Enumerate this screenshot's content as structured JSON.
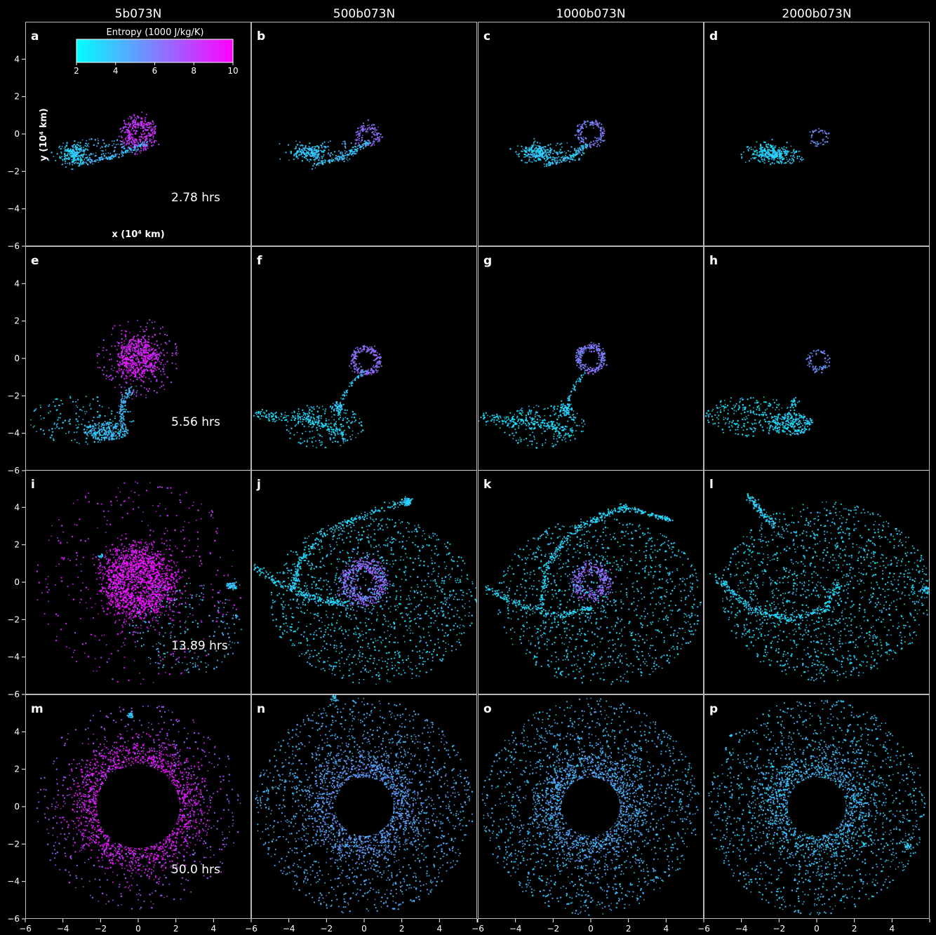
{
  "figure": {
    "columns": [
      "5b073N",
      "500b073N",
      "1000b073N",
      "2000b073N"
    ],
    "times": [
      "2.78 hrs",
      "5.56 hrs",
      "13.89 hrs",
      "50.0 hrs"
    ],
    "panel_letters": [
      "a",
      "b",
      "c",
      "d",
      "e",
      "f",
      "g",
      "h",
      "i",
      "j",
      "k",
      "l",
      "m",
      "n",
      "o",
      "p"
    ]
  },
  "colorbar": {
    "title": "Entropy (1000 J/kg/K)",
    "ticks": [
      "2",
      "4",
      "6",
      "8",
      "10"
    ],
    "range": [
      2,
      10
    ],
    "colors": [
      "#00ffff",
      "#ff00ff"
    ]
  },
  "chart_data": {
    "type": "scatter",
    "xlabel": "x (10⁴ km)",
    "ylabel": "y (10⁴ km)",
    "xlim": [
      -6,
      6
    ],
    "ylim": [
      -6,
      6
    ],
    "xticks": [
      "−6",
      "−4",
      "−2",
      "0",
      "2",
      "4",
      ""
    ],
    "yticks": [
      "−6",
      "−4",
      "−2",
      "0",
      "2",
      "4"
    ],
    "background": "#000000",
    "panels": [
      {
        "letter": "a",
        "time": "2.78 hrs",
        "structures": [
          {
            "kind": "ring",
            "x": 0.0,
            "y": 0.0,
            "r": 0.65,
            "w": 0.4,
            "n": 260,
            "s": 8.2
          },
          {
            "kind": "cloud",
            "x": 0.0,
            "y": 0.2,
            "rx": 1.0,
            "ry": 0.9,
            "n": 120,
            "s": 8.5
          },
          {
            "kind": "blob",
            "x": -3.4,
            "y": -1.1,
            "rx": 0.8,
            "ry": 0.55,
            "n": 260,
            "s": 3.4
          },
          {
            "kind": "line",
            "pts": [
              [
                -3.2,
                -1.6
              ],
              [
                -1.3,
                -1.2
              ],
              [
                0.5,
                -0.5
              ]
            ],
            "w": 0.15,
            "n": 130,
            "s": 3.9
          },
          {
            "kind": "cloud",
            "x": -2.0,
            "y": -0.8,
            "rx": 1.6,
            "ry": 0.6,
            "n": 90,
            "s": 4.4
          }
        ]
      },
      {
        "letter": "b",
        "time": "",
        "structures": [
          {
            "kind": "ring",
            "x": 0.2,
            "y": -0.1,
            "r": 0.5,
            "w": 0.25,
            "n": 130,
            "s": 6.4
          },
          {
            "kind": "blob",
            "x": -2.8,
            "y": -1.0,
            "rx": 1.0,
            "ry": 0.45,
            "n": 220,
            "s": 3.6
          },
          {
            "kind": "line",
            "pts": [
              [
                -2.7,
                -1.7
              ],
              [
                -1.0,
                -1.2
              ],
              [
                0.2,
                -0.4
              ]
            ],
            "w": 0.15,
            "n": 130,
            "s": 3.8
          },
          {
            "kind": "cloud",
            "x": -1.5,
            "y": -0.9,
            "rx": 1.4,
            "ry": 0.6,
            "n": 70,
            "s": 4.2
          }
        ]
      },
      {
        "letter": "c",
        "time": "",
        "structures": [
          {
            "kind": "ring",
            "x": 0.0,
            "y": 0.0,
            "r": 0.6,
            "w": 0.2,
            "n": 160,
            "s": 5.9
          },
          {
            "kind": "blob",
            "x": -2.8,
            "y": -1.0,
            "rx": 1.0,
            "ry": 0.45,
            "n": 230,
            "s": 3.4
          },
          {
            "kind": "line",
            "pts": [
              [
                -2.4,
                -1.7
              ],
              [
                -1.0,
                -1.2
              ],
              [
                -0.2,
                -0.6
              ]
            ],
            "w": 0.15,
            "n": 120,
            "s": 3.6
          },
          {
            "kind": "cloud",
            "x": -1.6,
            "y": -1.0,
            "rx": 1.3,
            "ry": 0.6,
            "n": 70,
            "s": 4.0
          }
        ]
      },
      {
        "letter": "d",
        "time": "",
        "structures": [
          {
            "kind": "ring",
            "x": 0.1,
            "y": -0.2,
            "r": 0.4,
            "w": 0.15,
            "n": 50,
            "s": 5.5
          },
          {
            "kind": "blob",
            "x": -2.6,
            "y": -1.0,
            "rx": 1.0,
            "ry": 0.5,
            "n": 260,
            "s": 3.2
          },
          {
            "kind": "cloud",
            "x": -1.6,
            "y": -1.2,
            "rx": 1.0,
            "ry": 0.4,
            "n": 90,
            "s": 3.5
          }
        ]
      },
      {
        "letter": "e",
        "time": "5.56 hrs",
        "structures": [
          {
            "kind": "ring",
            "x": 0.0,
            "y": 0.0,
            "r": 0.75,
            "w": 0.55,
            "n": 600,
            "s": 9.0
          },
          {
            "kind": "cloud",
            "x": 0.0,
            "y": 0.0,
            "rx": 2.2,
            "ry": 2.2,
            "n": 200,
            "s": 8.0
          },
          {
            "kind": "cloud",
            "x": -1.7,
            "y": -3.9,
            "rx": 1.2,
            "ry": 0.5,
            "n": 260,
            "s": 3.8
          },
          {
            "kind": "line",
            "pts": [
              [
                -0.8,
                -3.6
              ],
              [
                -0.9,
                -2.5
              ],
              [
                -0.3,
                -1.5
              ]
            ],
            "w": 0.2,
            "n": 120,
            "s": 4.2
          },
          {
            "kind": "cloud",
            "x": -3.0,
            "y": -3.3,
            "rx": 2.8,
            "ry": 1.3,
            "n": 160,
            "s": 3.4
          }
        ]
      },
      {
        "letter": "f",
        "time": "",
        "structures": [
          {
            "kind": "ring",
            "x": 0.1,
            "y": -0.1,
            "r": 0.65,
            "w": 0.2,
            "n": 240,
            "s": 6.4
          },
          {
            "kind": "line",
            "pts": [
              [
                -5.8,
                -3.0
              ],
              [
                -3.0,
                -3.2
              ],
              [
                -1.0,
                -4.0
              ]
            ],
            "w": 0.3,
            "n": 220,
            "s": 3.0
          },
          {
            "kind": "blob",
            "x": -1.4,
            "y": -2.6,
            "rx": 0.3,
            "ry": 0.35,
            "n": 60,
            "s": 3.5
          },
          {
            "kind": "line",
            "pts": [
              [
                -1.2,
                -2.2
              ],
              [
                -0.6,
                -1.2
              ],
              [
                0.0,
                -0.7
              ]
            ],
            "w": 0.1,
            "n": 45,
            "s": 3.5
          },
          {
            "kind": "cloud",
            "x": -2.2,
            "y": -3.6,
            "rx": 2.2,
            "ry": 1.2,
            "n": 200,
            "s": 3.2
          }
        ]
      },
      {
        "letter": "g",
        "time": "",
        "structures": [
          {
            "kind": "ring",
            "x": 0.0,
            "y": 0.0,
            "r": 0.65,
            "w": 0.2,
            "n": 260,
            "s": 6.0
          },
          {
            "kind": "line",
            "pts": [
              [
                -5.8,
                -3.2
              ],
              [
                -3.0,
                -3.4
              ],
              [
                -1.0,
                -4.0
              ]
            ],
            "w": 0.3,
            "n": 200,
            "s": 3.0
          },
          {
            "kind": "blob",
            "x": -1.3,
            "y": -2.7,
            "rx": 0.35,
            "ry": 0.4,
            "n": 80,
            "s": 3.4
          },
          {
            "kind": "line",
            "pts": [
              [
                -1.2,
                -2.2
              ],
              [
                -0.8,
                -1.4
              ],
              [
                -0.3,
                -0.7
              ]
            ],
            "w": 0.1,
            "n": 40,
            "s": 3.4
          },
          {
            "kind": "cloud",
            "x": -2.5,
            "y": -3.6,
            "rx": 2.2,
            "ry": 1.2,
            "n": 200,
            "s": 3.2
          }
        ]
      },
      {
        "letter": "h",
        "time": "",
        "structures": [
          {
            "kind": "ring",
            "x": 0.1,
            "y": -0.1,
            "r": 0.5,
            "w": 0.15,
            "n": 80,
            "s": 5.5
          },
          {
            "kind": "cloud",
            "x": -1.4,
            "y": -3.5,
            "rx": 1.2,
            "ry": 0.6,
            "n": 250,
            "s": 3.2
          },
          {
            "kind": "cloud",
            "x": -3.5,
            "y": -3.1,
            "rx": 2.4,
            "ry": 1.1,
            "n": 250,
            "s": 3.0
          },
          {
            "kind": "blob",
            "x": -1.2,
            "y": -2.4,
            "rx": 0.2,
            "ry": 0.25,
            "n": 30,
            "s": 3.2
          }
        ]
      },
      {
        "letter": "i",
        "time": "13.89 hrs",
        "structures": [
          {
            "kind": "ring",
            "x": 0.0,
            "y": 0.0,
            "r": 1.3,
            "w": 1.0,
            "n": 1700,
            "s": 9.4
          },
          {
            "kind": "cloud",
            "x": 0.0,
            "y": 0.0,
            "rx": 5.5,
            "ry": 5.5,
            "n": 420,
            "s": 8.6
          },
          {
            "kind": "cloud",
            "x": 2.5,
            "y": -2.5,
            "rx": 3.0,
            "ry": 2.5,
            "n": 200,
            "s": 4.0
          },
          {
            "kind": "blob",
            "x": 5.0,
            "y": -0.2,
            "rx": 0.3,
            "ry": 0.2,
            "n": 60,
            "s": 3.6
          },
          {
            "kind": "blob",
            "x": -2.0,
            "y": 1.4,
            "rx": 0.12,
            "ry": 0.1,
            "n": 15,
            "s": 3.8
          },
          {
            "kind": "blob",
            "x": 5.2,
            "y": -1.8,
            "rx": 0.08,
            "ry": 0.08,
            "n": 8,
            "s": 3.8
          }
        ]
      },
      {
        "letter": "j",
        "time": "",
        "structures": [
          {
            "kind": "ring",
            "x": 0.0,
            "y": 0.0,
            "r": 0.95,
            "w": 0.5,
            "n": 600,
            "s": 6.6
          },
          {
            "kind": "line",
            "pts": [
              [
                -5.8,
                0.8
              ],
              [
                -3.8,
                -0.5
              ],
              [
                -2.0,
                -1.0
              ],
              [
                -1.0,
                -1.2
              ]
            ],
            "w": 0.2,
            "n": 220,
            "s": 3.2
          },
          {
            "kind": "line",
            "pts": [
              [
                -3.8,
                -0.4
              ],
              [
                -3.5,
                1.0
              ],
              [
                -2.2,
                2.5
              ],
              [
                0.0,
                3.6
              ],
              [
                2.4,
                4.4
              ]
            ],
            "w": 0.2,
            "n": 280,
            "s": 3.2
          },
          {
            "kind": "blob",
            "x": 2.3,
            "y": 4.3,
            "rx": 0.28,
            "ry": 0.22,
            "n": 60,
            "s": 3.4
          },
          {
            "kind": "cloud",
            "x": 0.5,
            "y": -1.0,
            "rx": 5.5,
            "ry": 4.5,
            "n": 1300,
            "s": 3.3
          }
        ]
      },
      {
        "letter": "k",
        "time": "",
        "structures": [
          {
            "kind": "ring",
            "x": 0.0,
            "y": 0.0,
            "r": 0.8,
            "w": 0.4,
            "n": 380,
            "s": 6.6
          },
          {
            "kind": "line",
            "pts": [
              [
                -5.6,
                -0.3
              ],
              [
                -3.8,
                -1.2
              ],
              [
                -1.8,
                -1.8
              ],
              [
                0.0,
                -1.4
              ]
            ],
            "w": 0.2,
            "n": 220,
            "s": 3.2
          },
          {
            "kind": "line",
            "pts": [
              [
                -2.6,
                -1.5
              ],
              [
                -2.4,
                0.8
              ],
              [
                -1.2,
                2.5
              ],
              [
                0.5,
                3.5
              ],
              [
                1.8,
                4.0
              ]
            ],
            "w": 0.2,
            "n": 280,
            "s": 3.2
          },
          {
            "kind": "line",
            "pts": [
              [
                1.8,
                4.0
              ],
              [
                3.2,
                3.6
              ],
              [
                4.3,
                3.3
              ]
            ],
            "w": 0.12,
            "n": 120,
            "s": 3.2
          },
          {
            "kind": "cloud",
            "x": 0.5,
            "y": -1.0,
            "rx": 5.5,
            "ry": 4.5,
            "n": 1200,
            "s": 3.3
          }
        ]
      },
      {
        "letter": "l",
        "time": "",
        "structures": [
          {
            "kind": "line",
            "pts": [
              [
                -5.4,
                0.3
              ],
              [
                -3.4,
                -1.5
              ],
              [
                -1.4,
                -2.0
              ],
              [
                0.4,
                -1.5
              ],
              [
                1.2,
                0.0
              ]
            ],
            "w": 0.25,
            "n": 330,
            "s": 3.2
          },
          {
            "kind": "line",
            "pts": [
              [
                -3.6,
                4.6
              ],
              [
                -3.0,
                3.8
              ],
              [
                -2.2,
                3.0
              ]
            ],
            "w": 0.2,
            "n": 130,
            "s": 3.2
          },
          {
            "kind": "blob",
            "x": 5.8,
            "y": -0.4,
            "rx": 0.2,
            "ry": 0.2,
            "n": 30,
            "s": 3.4
          },
          {
            "kind": "cloud",
            "x": 0.5,
            "y": -0.5,
            "rx": 5.6,
            "ry": 4.8,
            "n": 1500,
            "s": 3.2
          }
        ]
      },
      {
        "letter": "m",
        "time": "50.0 hrs",
        "structures": [
          {
            "kind": "ring",
            "x": 0.0,
            "y": 0.0,
            "r": 2.4,
            "w": 1.5,
            "n": 2400,
            "s": 9.2
          },
          {
            "kind": "cloud",
            "x": 0.0,
            "y": 0.0,
            "rx": 5.5,
            "ry": 5.5,
            "n": 700,
            "s": 7.2
          },
          {
            "kind": "blob",
            "x": -0.4,
            "y": 4.9,
            "rx": 0.18,
            "ry": 0.18,
            "n": 30,
            "s": 3.6
          }
        ]
      },
      {
        "letter": "n",
        "time": "",
        "structures": [
          {
            "kind": "ring",
            "x": 0.0,
            "y": 0.0,
            "r": 2.0,
            "w": 1.4,
            "n": 1500,
            "s": 5.0
          },
          {
            "kind": "cloud",
            "x": 0.0,
            "y": 0.0,
            "rx": 5.8,
            "ry": 5.8,
            "n": 1700,
            "s": 4.4
          },
          {
            "kind": "blob",
            "x": -1.6,
            "y": 5.8,
            "rx": 0.2,
            "ry": 0.2,
            "n": 25,
            "s": 3.5
          }
        ]
      },
      {
        "letter": "o",
        "time": "",
        "structures": [
          {
            "kind": "ring",
            "x": 0.0,
            "y": 0.0,
            "r": 2.0,
            "w": 1.4,
            "n": 1500,
            "s": 4.6
          },
          {
            "kind": "cloud",
            "x": 0.0,
            "y": 0.0,
            "rx": 5.8,
            "ry": 5.8,
            "n": 1700,
            "s": 4.0
          },
          {
            "kind": "blob",
            "x": -1.9,
            "y": 3.2,
            "rx": 0.1,
            "ry": 0.1,
            "n": 10,
            "s": 3.4
          }
        ]
      },
      {
        "letter": "p",
        "time": "",
        "structures": [
          {
            "kind": "ring",
            "x": 0.0,
            "y": 0.0,
            "r": 2.0,
            "w": 1.4,
            "n": 1400,
            "s": 4.0
          },
          {
            "kind": "cloud",
            "x": 0.0,
            "y": 0.0,
            "rx": 5.8,
            "ry": 5.8,
            "n": 1600,
            "s": 3.7
          },
          {
            "kind": "blob",
            "x": 4.8,
            "y": -2.1,
            "rx": 0.18,
            "ry": 0.18,
            "n": 25,
            "s": 3.4
          },
          {
            "kind": "blob",
            "x": 2.5,
            "y": -2.0,
            "rx": 0.1,
            "ry": 0.1,
            "n": 10,
            "s": 3.4
          },
          {
            "kind": "blob",
            "x": -4.6,
            "y": 3.8,
            "rx": 0.08,
            "ry": 0.08,
            "n": 8,
            "s": 3.4
          }
        ]
      }
    ]
  }
}
